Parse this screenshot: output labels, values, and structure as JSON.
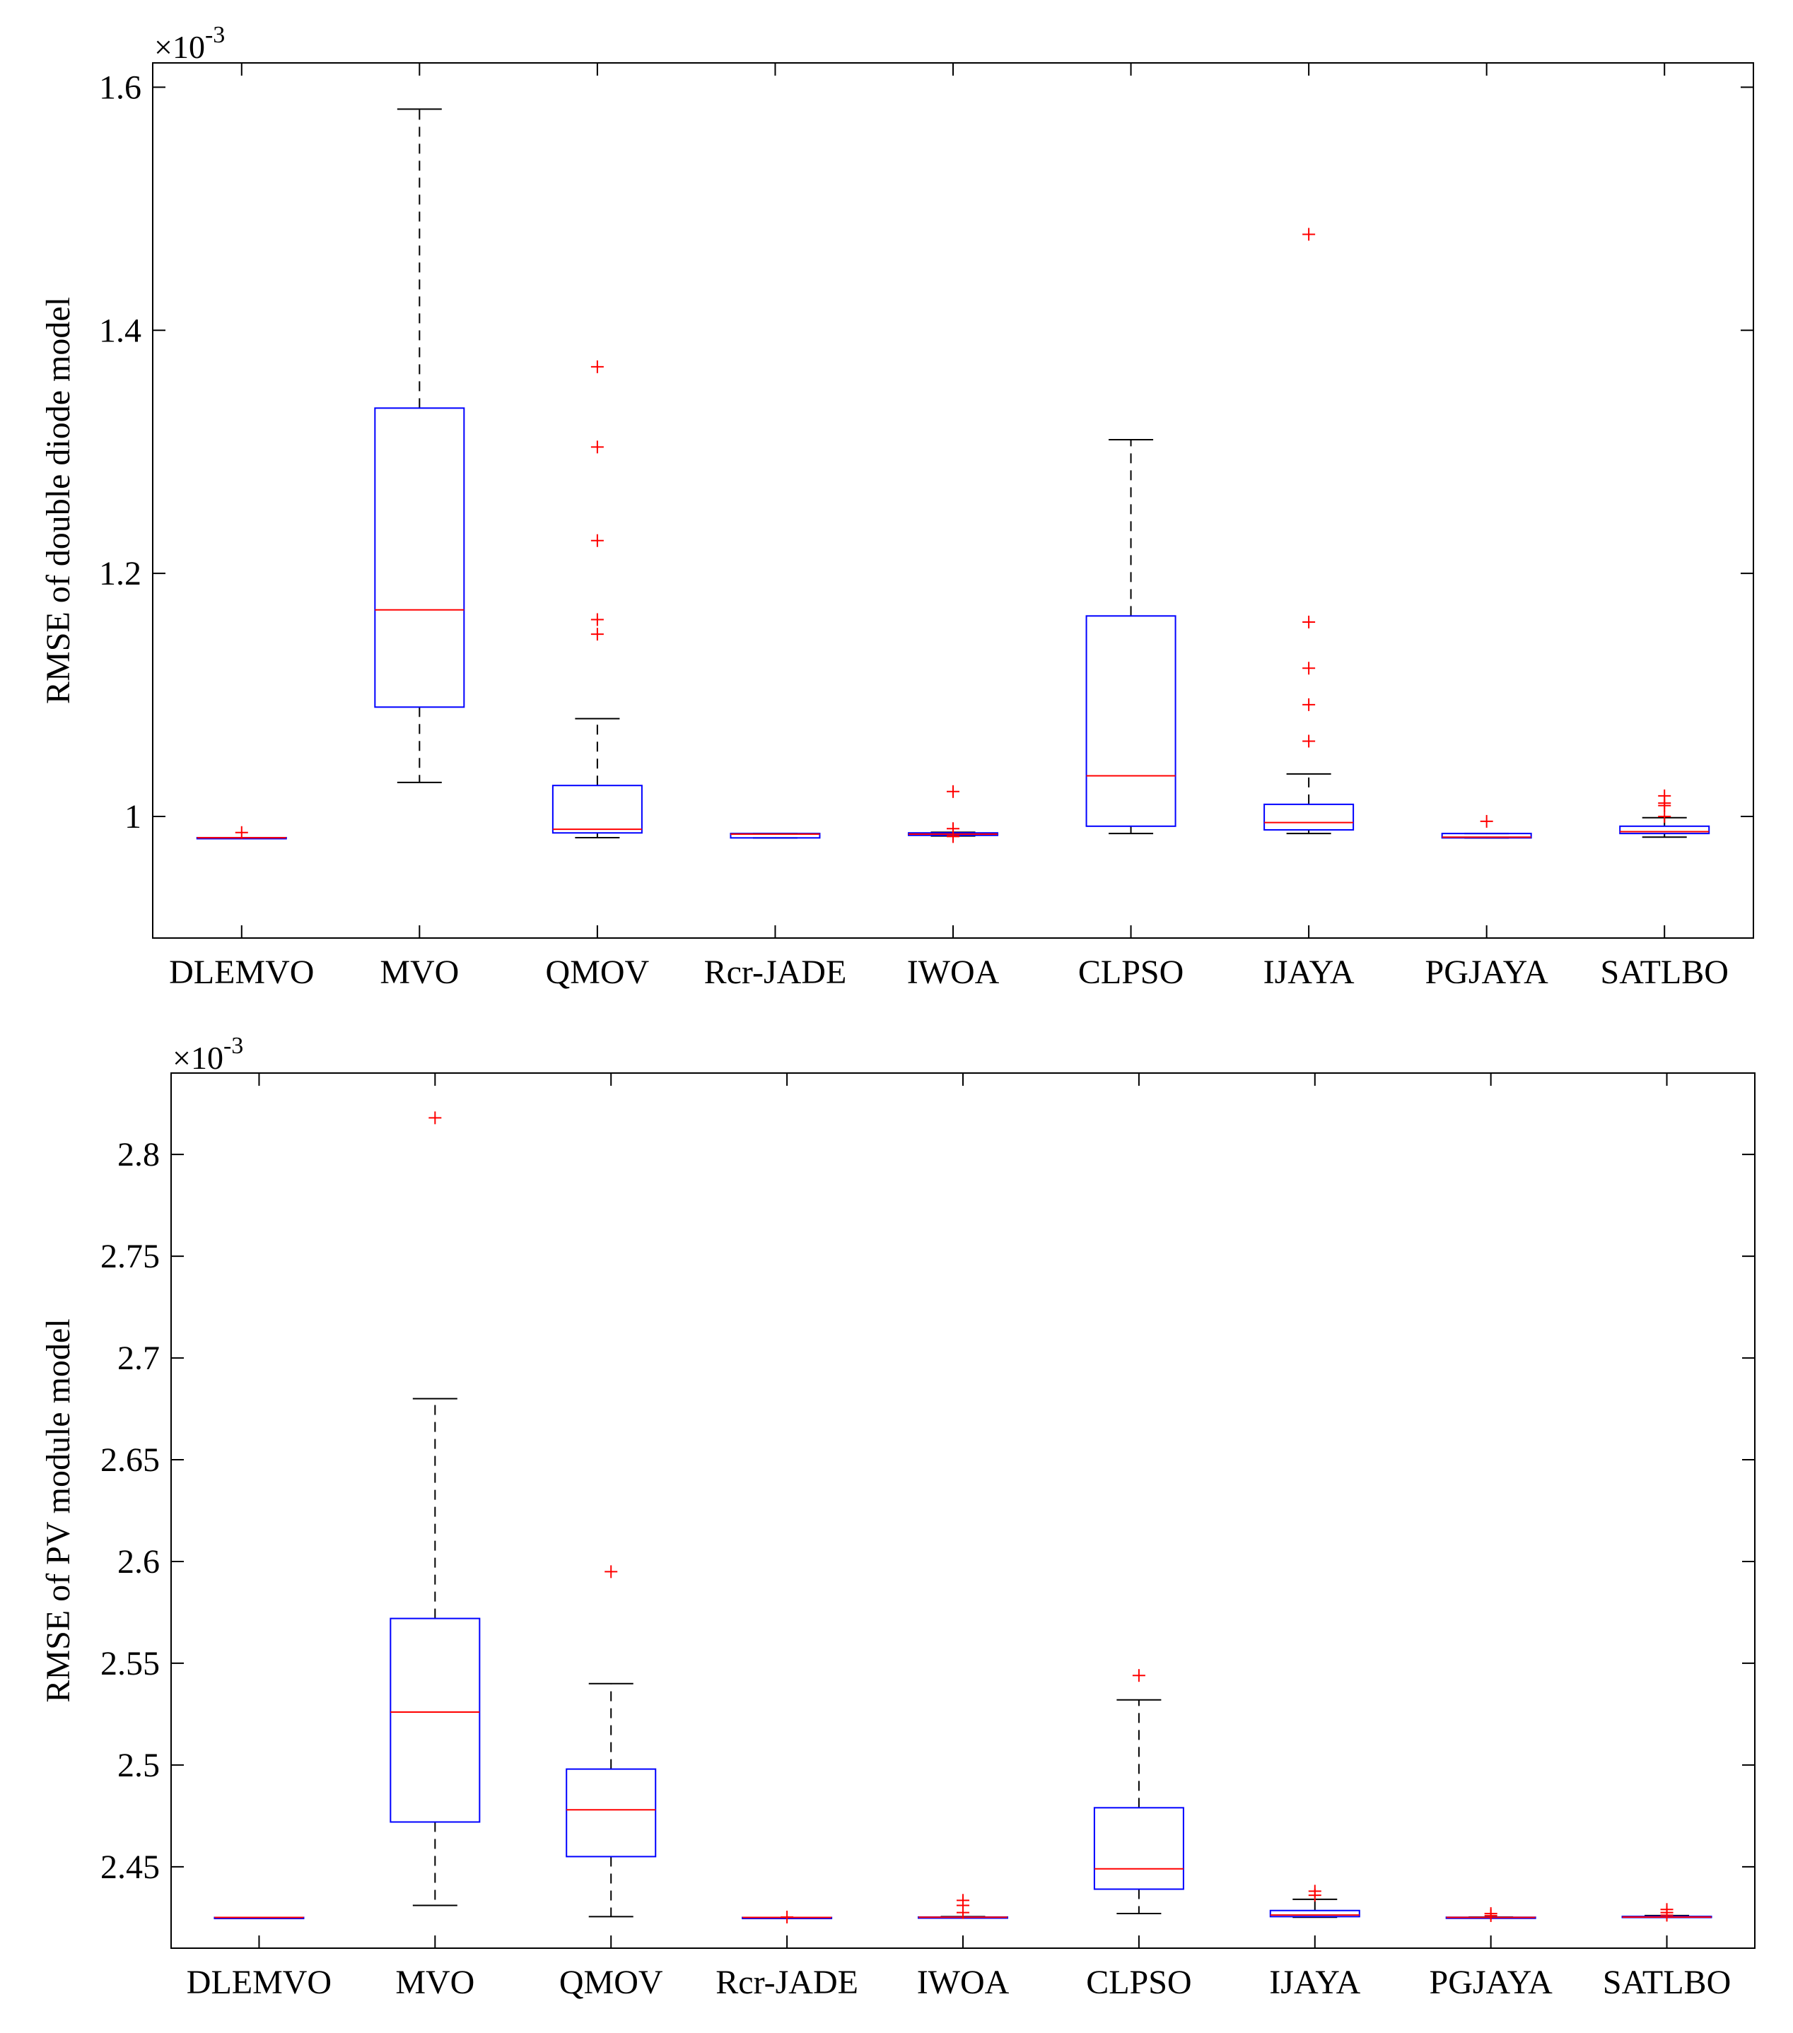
{
  "chart_data": [
    {
      "type": "box",
      "ylabel": "RMSE of double diode model",
      "exponent": "×10-3",
      "exponent_parts": {
        "base": "×10",
        "power": "-3"
      },
      "ylim": [
        0.9,
        1.62
      ],
      "yticks": [
        1,
        1.2,
        1.4,
        1.6
      ],
      "ytick_labels": [
        "1",
        "1.2",
        "1.4",
        "1.6"
      ],
      "categories": [
        "DLEMVO",
        "MVO",
        "QMOV",
        "Rcr-JADE",
        "IWOA",
        "CLPSO",
        "IJAYA",
        "PGJAYA",
        "SATLBO"
      ],
      "boxes": [
        {
          "name": "DLEMVO",
          "lw": 0.9824,
          "q1": 0.9824,
          "median": 0.9825,
          "q3": 0.9826,
          "uw": 0.9826,
          "outliers": [
            0.9868
          ]
        },
        {
          "name": "MVO",
          "lw": 1.028,
          "q1": 1.09,
          "median": 1.17,
          "q3": 1.336,
          "uw": 1.582,
          "outliers": []
        },
        {
          "name": "QMOV",
          "lw": 0.9826,
          "q1": 0.9865,
          "median": 0.9895,
          "q3": 1.0255,
          "uw": 1.0805,
          "outliers": [
            1.37,
            1.304,
            1.227,
            1.162,
            1.15
          ]
        },
        {
          "name": "Rcr-JADE",
          "lw": 0.9824,
          "q1": 0.9824,
          "median": 0.9855,
          "q3": 0.986,
          "uw": 0.986,
          "outliers": []
        },
        {
          "name": "IWOA",
          "lw": 0.984,
          "q1": 0.9845,
          "median": 0.9855,
          "q3": 0.9865,
          "uw": 0.987,
          "outliers": [
            1.0205,
            0.99,
            0.984,
            0.9835
          ]
        },
        {
          "name": "CLPSO",
          "lw": 0.986,
          "q1": 0.992,
          "median": 1.0335,
          "q3": 1.165,
          "uw": 1.31,
          "outliers": []
        },
        {
          "name": "IJAYA",
          "lw": 0.986,
          "q1": 0.989,
          "median": 0.995,
          "q3": 1.01,
          "uw": 1.035,
          "outliers": [
            1.479,
            1.16,
            1.122,
            1.092,
            1.062
          ]
        },
        {
          "name": "PGJAYA",
          "lw": 0.9824,
          "q1": 0.9824,
          "median": 0.983,
          "q3": 0.986,
          "uw": 0.986,
          "outliers": [
            0.996
          ]
        },
        {
          "name": "SATLBO",
          "lw": 0.983,
          "q1": 0.986,
          "median": 0.9875,
          "q3": 0.992,
          "uw": 0.999,
          "outliers": [
            1.017,
            1.011,
            1.009,
            1.0
          ]
        }
      ]
    },
    {
      "type": "box",
      "ylabel": "RMSE of PV module model",
      "exponent": "×10-3",
      "exponent_parts": {
        "base": "×10",
        "power": "-3"
      },
      "ylim": [
        2.41,
        2.84
      ],
      "yticks": [
        2.45,
        2.5,
        2.55,
        2.6,
        2.65,
        2.7,
        2.75,
        2.8
      ],
      "ytick_labels": [
        "2.45",
        "2.5",
        "2.55",
        "2.6",
        "2.65",
        "2.7",
        "2.75",
        "2.8"
      ],
      "categories": [
        "DLEMVO",
        "MVO",
        "QMOV",
        "Rcr-JADE",
        "IWOA",
        "CLPSO",
        "IJAYA",
        "PGJAYA",
        "SATLBO"
      ],
      "boxes": [
        {
          "name": "DLEMVO",
          "lw": 2.4251,
          "q1": 2.4251,
          "median": 2.4251,
          "q3": 2.4251,
          "uw": 2.4251,
          "outliers": []
        },
        {
          "name": "MVO",
          "lw": 2.431,
          "q1": 2.472,
          "median": 2.526,
          "q3": 2.572,
          "uw": 2.68,
          "outliers": [
            2.818
          ]
        },
        {
          "name": "QMOV",
          "lw": 2.4255,
          "q1": 2.455,
          "median": 2.478,
          "q3": 2.498,
          "uw": 2.54,
          "outliers": [
            2.595
          ]
        },
        {
          "name": "Rcr-JADE",
          "lw": 2.4251,
          "q1": 2.4251,
          "median": 2.4251,
          "q3": 2.4251,
          "uw": 2.4251,
          "outliers": [
            2.4253
          ]
        },
        {
          "name": "IWOA",
          "lw": 2.4251,
          "q1": 2.4251,
          "median": 2.4252,
          "q3": 2.4253,
          "uw": 2.4255,
          "outliers": [
            2.4335,
            2.431,
            2.4275
          ]
        },
        {
          "name": "CLPSO",
          "lw": 2.427,
          "q1": 2.439,
          "median": 2.449,
          "q3": 2.479,
          "uw": 2.532,
          "outliers": [
            2.544
          ]
        },
        {
          "name": "IJAYA",
          "lw": 2.4252,
          "q1": 2.4255,
          "median": 2.4263,
          "q3": 2.4285,
          "uw": 2.434,
          "outliers": [
            2.438,
            2.436
          ]
        },
        {
          "name": "PGJAYA",
          "lw": 2.4251,
          "q1": 2.4251,
          "median": 2.4251,
          "q3": 2.4252,
          "uw": 2.4253,
          "outliers": [
            2.427,
            2.426
          ]
        },
        {
          "name": "SATLBO",
          "lw": 2.4251,
          "q1": 2.4251,
          "median": 2.4253,
          "q3": 2.4256,
          "uw": 2.426,
          "outliers": [
            2.429,
            2.4275,
            2.4262
          ]
        }
      ]
    }
  ],
  "colors": {
    "axis": "#000000",
    "box": "#0000ff",
    "median": "#ff0000",
    "whisker": "#000000",
    "outlier": "#ff0000"
  }
}
